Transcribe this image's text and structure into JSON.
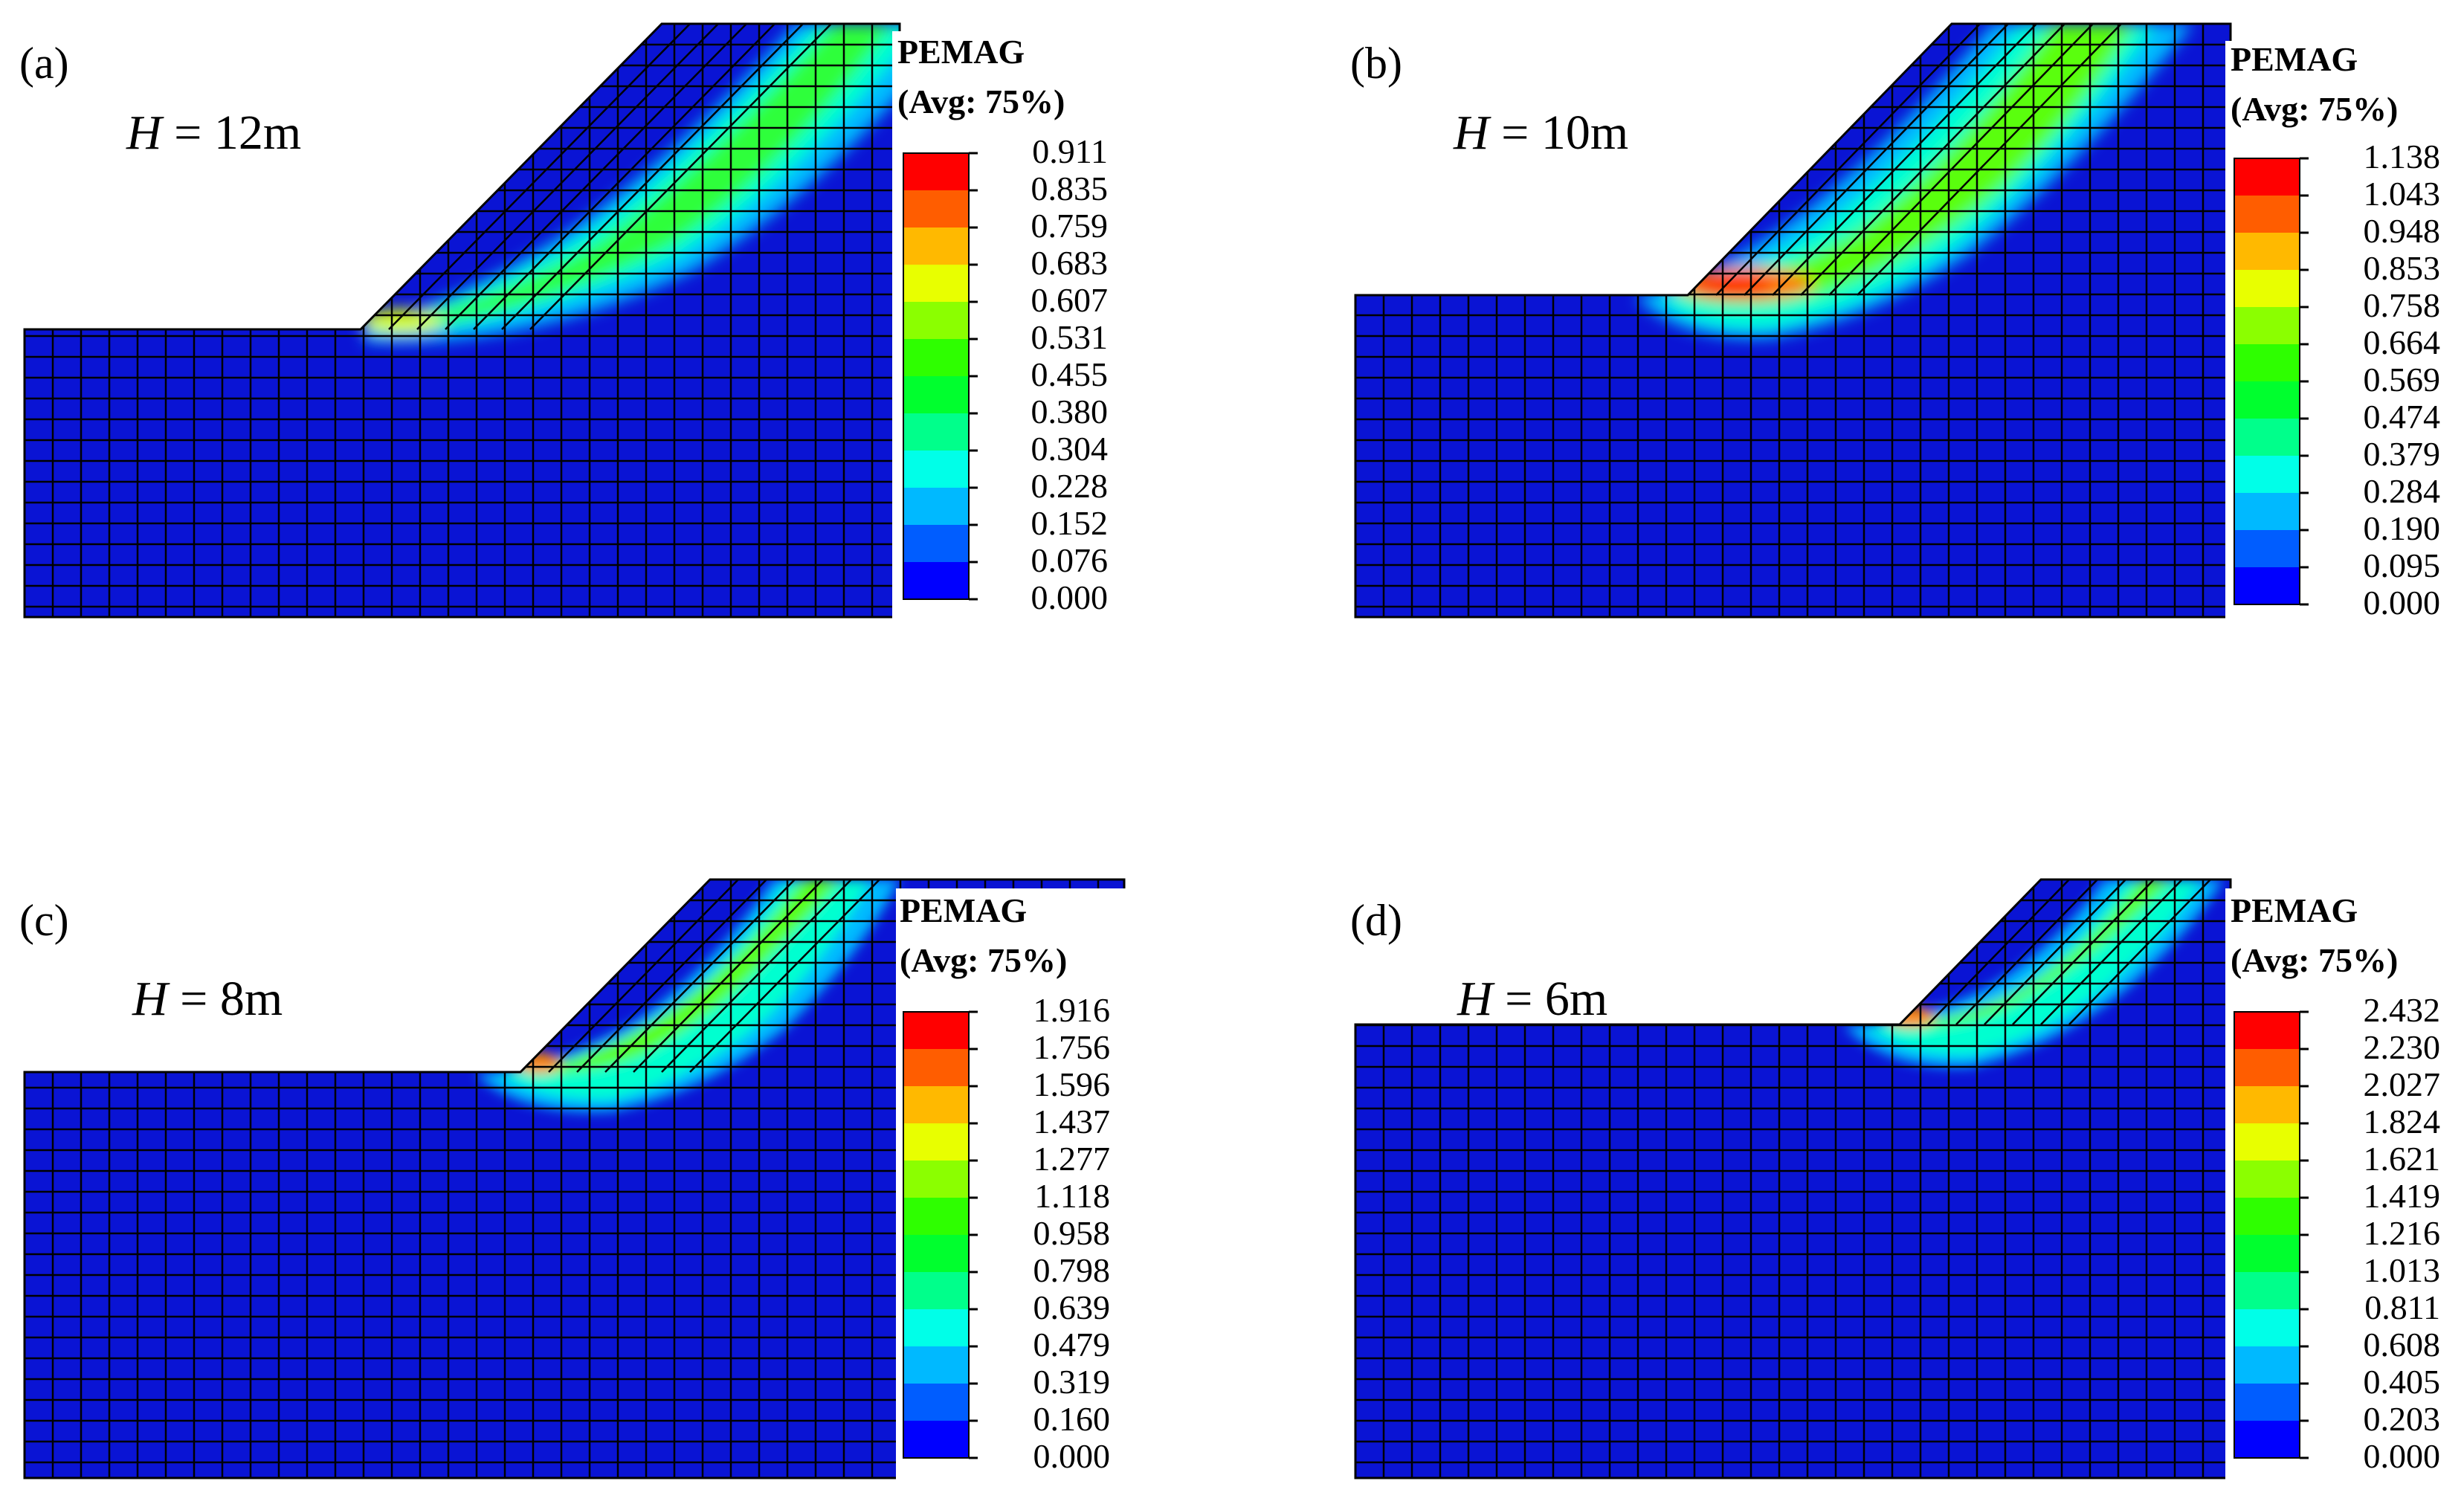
{
  "colors": {
    "background": "#ffffff",
    "mesh_line": "#000000",
    "base_blue": "#0a14d4"
  },
  "colormap": [
    "#0000ff",
    "#005dff",
    "#00b9ff",
    "#00ffe8",
    "#00ff8b",
    "#00ff2e",
    "#2eff00",
    "#8bff00",
    "#e8ff00",
    "#ffb900",
    "#ff5d00",
    "#ff0000"
  ],
  "panels": [
    {
      "label": "(a)",
      "h_italic": "H",
      "h_value": " = 12m",
      "legend_title": "PEMAG",
      "legend_subtitle": "(Avg: 75%)",
      "legend_values": [
        "0.911",
        "0.835",
        "0.759",
        "0.683",
        "0.607",
        "0.531",
        "0.455",
        "0.380",
        "0.304",
        "0.228",
        "0.152",
        "0.076",
        "0.000"
      ],
      "peak_level": 11
    },
    {
      "label": "(b)",
      "h_italic": "H",
      "h_value": " = 10m",
      "legend_title": "PEMAG",
      "legend_subtitle": "(Avg: 75%)",
      "legend_values": [
        "1.138",
        "1.043",
        "0.948",
        "0.853",
        "0.758",
        "0.664",
        "0.569",
        "0.474",
        "0.379",
        "0.284",
        "0.190",
        "0.095",
        "0.000"
      ],
      "peak_level": 11
    },
    {
      "label": "(c)",
      "h_italic": "H",
      "h_value": " = 8m",
      "legend_title": "PEMAG",
      "legend_subtitle": "(Avg: 75%)",
      "legend_values": [
        "1.916",
        "1.756",
        "1.596",
        "1.437",
        "1.277",
        "1.118",
        "0.958",
        "0.798",
        "0.639",
        "0.479",
        "0.319",
        "0.160",
        "0.000"
      ],
      "peak_level": 11
    },
    {
      "label": "(d)",
      "h_italic": "H",
      "h_value": " = 6m",
      "legend_title": "PEMAG",
      "legend_subtitle": "(Avg: 75%)",
      "legend_values": [
        "2.432",
        "2.230",
        "2.027",
        "1.824",
        "1.621",
        "1.419",
        "1.216",
        "1.013",
        "0.811",
        "0.608",
        "0.405",
        "0.203",
        "0.000"
      ],
      "peak_level": 11
    }
  ]
}
